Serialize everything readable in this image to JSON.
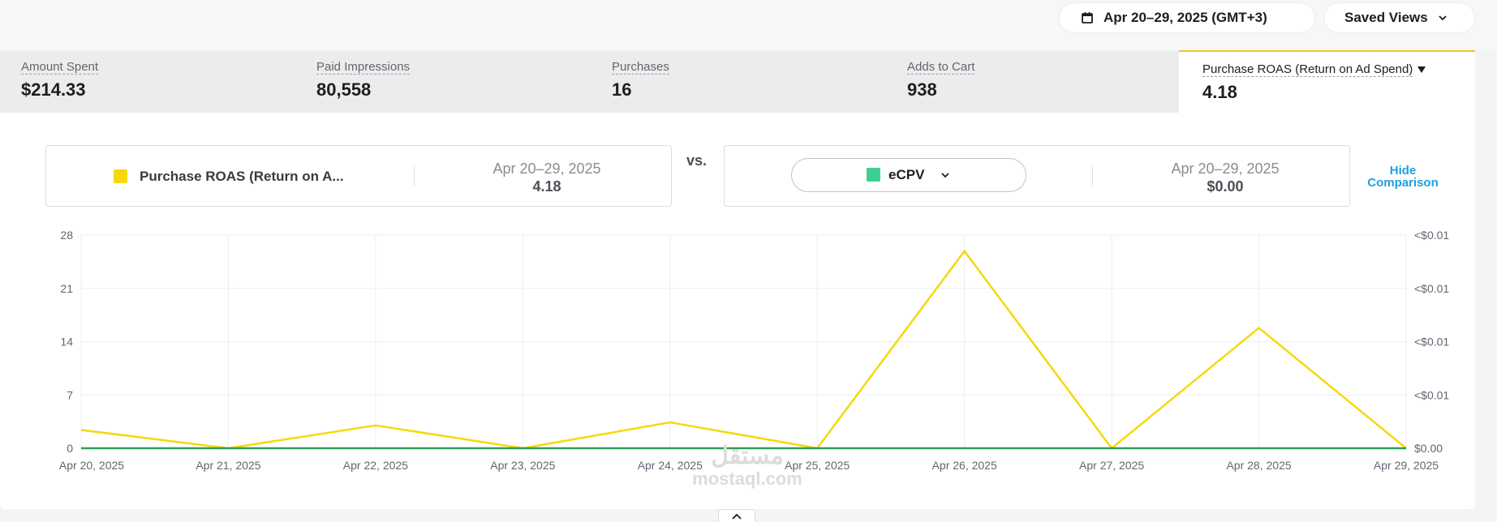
{
  "header": {
    "date_range": "Apr 20–29, 2025 (GMT+3)",
    "saved_views": "Saved Views"
  },
  "metrics": [
    {
      "label": "Amount Spent",
      "value": "$214.33"
    },
    {
      "label": "Paid Impressions",
      "value": "80,558"
    },
    {
      "label": "Purchases",
      "value": "16"
    },
    {
      "label": "Adds to Cart",
      "value": "938"
    },
    {
      "label": "Purchase ROAS (Return on Ad Spend)",
      "value": "4.18"
    }
  ],
  "comparison": {
    "primary": {
      "name": "Purchase ROAS (Return on A...",
      "range": "Apr 20–29, 2025",
      "value": "4.18",
      "color": "#f5d90a"
    },
    "vs_label": "vs.",
    "secondary": {
      "name": "eCPV",
      "range": "Apr 20–29, 2025",
      "value": "$0.00",
      "color": "#3ecf8e"
    },
    "hide_label_line1": "Hide",
    "hide_label_line2": "Comparison"
  },
  "chart_data": {
    "type": "line",
    "categories": [
      "Apr 20, 2025",
      "Apr 21, 2025",
      "Apr 22, 2025",
      "Apr 23, 2025",
      "Apr 24, 2025",
      "Apr 25, 2025",
      "Apr 26, 2025",
      "Apr 27, 2025",
      "Apr 28, 2025",
      "Apr 29, 2025"
    ],
    "series": [
      {
        "name": "Purchase ROAS (Return on Ad Spend)",
        "axis": "left",
        "color": "#f5d90a",
        "values": [
          2.4,
          0,
          3.0,
          0,
          3.4,
          0,
          25.9,
          0,
          15.8,
          0
        ]
      },
      {
        "name": "eCPV",
        "axis": "right",
        "color": "#2e9e5b",
        "values": [
          0,
          0,
          0,
          0,
          0,
          0,
          0,
          0,
          0,
          0
        ]
      }
    ],
    "y_left_ticks": [
      "28",
      "21",
      "14",
      "7",
      "0"
    ],
    "y_left_range": [
      0,
      28
    ],
    "y_right_ticks": [
      "<$0.01",
      "<$0.01",
      "<$0.01",
      "<$0.01",
      "$0.00"
    ],
    "grid": true
  },
  "watermark": {
    "arabic": "مستقل",
    "latin": "mostaql.com"
  }
}
